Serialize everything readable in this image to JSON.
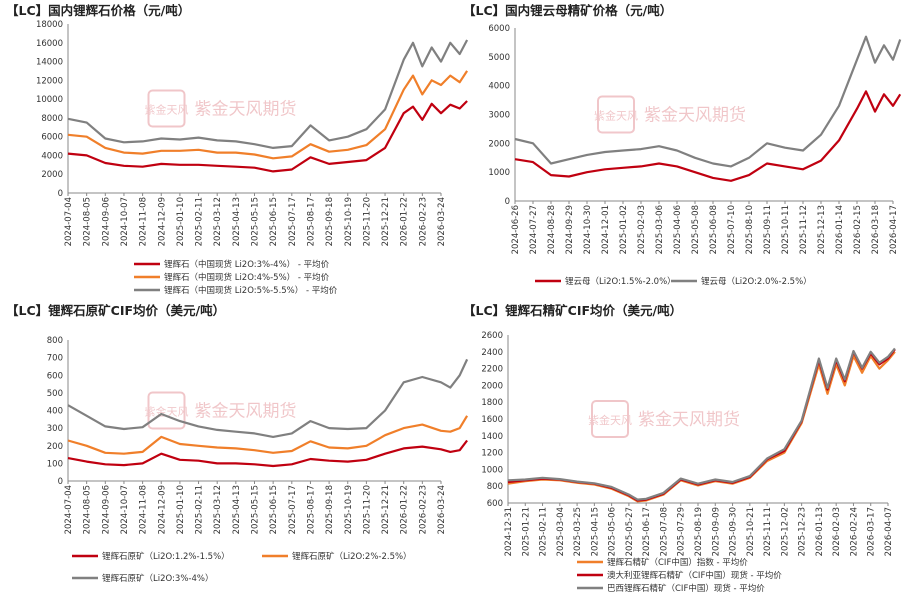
{
  "watermark": {
    "text": "紫金天风期货",
    "seal": "紫金天风"
  },
  "chart_data": [
    {
      "id": "p1",
      "title": "【LC】国内锂辉石价格（元/吨）",
      "type": "line",
      "ylim": [
        0,
        18000
      ],
      "yticks": [
        0,
        2000,
        4000,
        6000,
        8000,
        10000,
        12000,
        14000,
        16000,
        18000
      ],
      "x_ticks": [
        "2024-07-04",
        "2024-08-05",
        "2024-09-06",
        "2024-10-07",
        "2024-11-08",
        "2024-12-09",
        "2025-01-10",
        "2025-02-11",
        "2025-03-12",
        "2025-04-13",
        "2025-05-15",
        "2025-06-15",
        "2025-07-17",
        "2025-08-17",
        "2025-09-18",
        "2025-10-19",
        "2025-11-20",
        "2025-12-21",
        "2026-01-22",
        "2026-02-23",
        "2026-03-24"
      ],
      "legend": [
        {
          "label": "锂辉石（中国现货 Li2O:3%-4%） - 平均价",
          "color": "#c00010"
        },
        {
          "label": "锂辉石（中国现货 Li2O:4%-5%） - 平均价",
          "color": "#f07f2a"
        },
        {
          "label": "锂辉石（中国现货 Li2O:5%-5.5%） - 平均价",
          "color": "#808080"
        }
      ],
      "series": [
        {
          "color": "#c00010",
          "x": [
            0,
            1,
            2,
            3,
            4,
            5,
            6,
            7,
            8,
            9,
            10,
            11,
            12,
            13,
            14,
            15,
            16,
            17,
            18,
            18.5,
            19,
            19.5,
            20,
            20.5,
            21,
            21.4
          ],
          "values": [
            4200,
            4000,
            3200,
            2900,
            2800,
            3100,
            3000,
            3000,
            2900,
            2800,
            2700,
            2300,
            2500,
            3800,
            3100,
            3300,
            3500,
            4800,
            8500,
            9200,
            7800,
            9500,
            8500,
            9400,
            9000,
            9800
          ]
        },
        {
          "color": "#f07f2a",
          "x": [
            0,
            1,
            2,
            3,
            4,
            5,
            6,
            7,
            8,
            9,
            10,
            11,
            12,
            13,
            14,
            15,
            16,
            17,
            18,
            18.5,
            19,
            19.5,
            20,
            20.5,
            21,
            21.4
          ],
          "values": [
            6200,
            6000,
            4800,
            4300,
            4200,
            4500,
            4500,
            4600,
            4300,
            4300,
            4100,
            3700,
            3900,
            5200,
            4400,
            4600,
            5100,
            6800,
            11000,
            12500,
            10500,
            12000,
            11500,
            12500,
            11800,
            13000
          ]
        },
        {
          "color": "#808080",
          "x": [
            0,
            1,
            2,
            3,
            4,
            5,
            6,
            7,
            8,
            9,
            10,
            11,
            12,
            13,
            14,
            15,
            16,
            17,
            18,
            18.5,
            19,
            19.5,
            20,
            20.5,
            21,
            21.4
          ],
          "values": [
            7900,
            7500,
            5800,
            5400,
            5500,
            5800,
            5700,
            5900,
            5600,
            5500,
            5200,
            4800,
            5000,
            7200,
            5600,
            6000,
            6800,
            8900,
            14200,
            16000,
            13500,
            15500,
            14000,
            16000,
            14800,
            16300
          ]
        }
      ]
    },
    {
      "id": "p2",
      "title": "【LC】国内锂云母精矿价格（元/吨）",
      "type": "line",
      "ylim": [
        0,
        6000
      ],
      "yticks": [
        0,
        1000,
        2000,
        3000,
        4000,
        5000,
        6000
      ],
      "x_ticks": [
        "2024-06-26",
        "2024-07-27",
        "2024-08-28",
        "2024-09-29",
        "2024-10-30",
        "2024-12-01",
        "2025-01-02",
        "2025-02-03",
        "2025-03-06",
        "2025-04-06",
        "2025-05-08",
        "2025-06-08",
        "2025-07-10",
        "2025-08-10",
        "2025-09-11",
        "2025-10-11",
        "2025-11-12",
        "2025-12-13",
        "2026-01-14",
        "2026-02-15",
        "2026-03-18",
        "2026-04-17"
      ],
      "legend": [
        {
          "label": "锂云母（Li2O:1.5%-2.0%）",
          "color": "#c00010"
        },
        {
          "label": "锂云母（Li2O:2.0%-2.5%）",
          "color": "#808080"
        }
      ],
      "series": [
        {
          "color": "#c00010",
          "x": [
            0,
            1,
            2,
            3,
            4,
            5,
            6,
            7,
            8,
            9,
            10,
            11,
            12,
            13,
            14,
            15,
            16,
            17,
            18,
            19,
            19.5,
            20,
            20.5,
            21,
            21.4
          ],
          "values": [
            1450,
            1350,
            900,
            850,
            1000,
            1100,
            1150,
            1200,
            1300,
            1200,
            1000,
            800,
            700,
            900,
            1300,
            1200,
            1100,
            1400,
            2100,
            3200,
            3800,
            3100,
            3700,
            3300,
            3700
          ]
        },
        {
          "color": "#808080",
          "x": [
            0,
            1,
            2,
            3,
            4,
            5,
            6,
            7,
            8,
            9,
            10,
            11,
            12,
            13,
            14,
            15,
            16,
            17,
            18,
            19,
            19.5,
            20,
            20.5,
            21,
            21.4
          ],
          "values": [
            2150,
            2000,
            1300,
            1450,
            1600,
            1700,
            1750,
            1800,
            1900,
            1750,
            1500,
            1300,
            1200,
            1500,
            2000,
            1850,
            1750,
            2300,
            3300,
            4900,
            5700,
            4800,
            5400,
            4900,
            5600
          ]
        }
      ]
    },
    {
      "id": "p3",
      "title": "【LC】锂辉石原矿CIF均价（美元/吨）",
      "type": "line",
      "ylim": [
        0,
        800
      ],
      "yticks": [
        0,
        100,
        200,
        300,
        400,
        500,
        600,
        700,
        800
      ],
      "x_ticks": [
        "2024-07-04",
        "2024-08-05",
        "2024-09-06",
        "2024-10-07",
        "2024-11-08",
        "2024-12-09",
        "2025-01-10",
        "2025-02-11",
        "2025-03-12",
        "2025-04-13",
        "2025-05-15",
        "2025-06-15",
        "2025-07-17",
        "2025-08-17",
        "2025-09-18",
        "2025-10-19",
        "2025-11-20",
        "2025-12-21",
        "2026-01-22",
        "2026-02-23",
        "2026-03-24"
      ],
      "legend": [
        {
          "label": "锂辉石原矿（Li2O:1.2%-1.5%）",
          "color": "#c00010"
        },
        {
          "label": "锂辉石原矿（Li2O:2%-2.5%）",
          "color": "#f07f2a"
        },
        {
          "label": "锂辉石原矿（Li2O:3%-4%）",
          "color": "#808080"
        }
      ],
      "series": [
        {
          "color": "#c00010",
          "x": [
            0,
            1,
            2,
            3,
            4,
            5,
            6,
            7,
            8,
            9,
            10,
            11,
            12,
            13,
            14,
            15,
            16,
            17,
            18,
            19,
            20,
            20.5,
            21,
            21.4
          ],
          "values": [
            130,
            110,
            95,
            90,
            100,
            155,
            120,
            115,
            100,
            100,
            95,
            85,
            95,
            125,
            115,
            110,
            120,
            155,
            185,
            195,
            180,
            165,
            175,
            230
          ]
        },
        {
          "color": "#f07f2a",
          "x": [
            0,
            1,
            2,
            3,
            4,
            5,
            6,
            7,
            8,
            9,
            10,
            11,
            12,
            13,
            14,
            15,
            16,
            17,
            18,
            19,
            20,
            20.5,
            21,
            21.4
          ],
          "values": [
            230,
            200,
            160,
            155,
            165,
            250,
            210,
            200,
            190,
            185,
            175,
            160,
            170,
            225,
            190,
            185,
            200,
            260,
            300,
            320,
            285,
            280,
            300,
            370
          ]
        },
        {
          "color": "#808080",
          "x": [
            0,
            1,
            2,
            3,
            4,
            5,
            6,
            7,
            8,
            9,
            10,
            11,
            12,
            13,
            14,
            15,
            16,
            17,
            18,
            19,
            20,
            20.5,
            21,
            21.4
          ],
          "values": [
            430,
            370,
            310,
            295,
            305,
            380,
            340,
            310,
            290,
            280,
            270,
            250,
            270,
            340,
            300,
            295,
            300,
            400,
            560,
            590,
            560,
            530,
            600,
            690
          ]
        }
      ]
    },
    {
      "id": "p4",
      "title": "【LC】锂辉石精矿CIF均价（美元/吨）",
      "type": "line",
      "ylim": [
        600,
        2600
      ],
      "yticks": [
        600,
        800,
        1000,
        1200,
        1400,
        1600,
        1800,
        2000,
        2200,
        2400,
        2600
      ],
      "x_ticks": [
        "2024-12-31",
        "2025-01-21",
        "2025-02-11",
        "2025-03-04",
        "2025-03-25",
        "2025-04-15",
        "2025-05-06",
        "2025-05-27",
        "2025-06-17",
        "2025-07-08",
        "2025-07-29",
        "2025-08-19",
        "2025-09-09",
        "2025-09-30",
        "2025-10-21",
        "2025-11-11",
        "2025-12-02",
        "2025-12-23",
        "2026-01-13",
        "2026-02-03",
        "2026-02-24",
        "2026-03-17",
        "2026-04-07"
      ],
      "legend": [
        {
          "label": "锂辉石精矿（CIF中国）指数 - 平均价",
          "color": "#f07f2a"
        },
        {
          "label": "澳大利亚锂辉石精矿（CIF中国）现货 - 平均价",
          "color": "#c00010"
        },
        {
          "label": "巴西锂辉石精矿（CIF中国）现货 - 平均价",
          "color": "#808080"
        }
      ],
      "series": [
        {
          "color": "#f07f2a",
          "x": [
            0,
            1,
            2,
            3,
            4,
            5,
            6,
            7,
            7.5,
            8,
            9,
            10,
            11,
            12,
            13,
            14,
            15,
            16,
            17,
            18,
            18.5,
            19,
            19.5,
            20,
            20.5,
            21,
            21.5,
            22,
            22.4
          ],
          "values": [
            830,
            860,
            880,
            870,
            840,
            820,
            770,
            680,
            620,
            630,
            700,
            870,
            810,
            860,
            830,
            900,
            1100,
            1200,
            1550,
            2250,
            1900,
            2250,
            2000,
            2350,
            2150,
            2350,
            2200,
            2300,
            2400
          ]
        },
        {
          "color": "#c00010",
          "x": [
            0,
            1,
            2,
            3,
            4,
            5,
            6,
            7,
            7.5,
            8,
            9,
            10,
            11,
            12,
            13,
            14,
            15,
            16,
            17,
            18,
            18.5,
            19,
            19.5,
            20,
            20.5,
            21,
            21.5,
            22,
            22.4
          ],
          "values": [
            850,
            870,
            890,
            880,
            850,
            830,
            780,
            690,
            630,
            640,
            710,
            880,
            820,
            870,
            840,
            910,
            1120,
            1220,
            1570,
            2300,
            1950,
            2300,
            2050,
            2400,
            2200,
            2380,
            2250,
            2320,
            2430
          ]
        },
        {
          "color": "#808080",
          "x": [
            0,
            1,
            2,
            3,
            4,
            5,
            6,
            7,
            7.5,
            8,
            9,
            10,
            11,
            12,
            13,
            14,
            15,
            16,
            17,
            18,
            18.5,
            19,
            19.5,
            20,
            20.5,
            21,
            21.5,
            22,
            22.4
          ],
          "values": [
            870,
            880,
            900,
            885,
            855,
            835,
            790,
            700,
            640,
            650,
            720,
            890,
            830,
            880,
            850,
            920,
            1130,
            1240,
            1580,
            2320,
            1970,
            2320,
            2070,
            2410,
            2210,
            2400,
            2270,
            2340,
            2440
          ]
        }
      ]
    }
  ]
}
